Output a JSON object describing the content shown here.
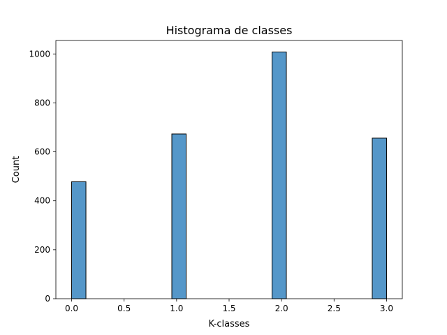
{
  "chart_data": {
    "type": "bar",
    "subtype": "histogram",
    "title": "Histograma de classes",
    "xlabel": "K-classes",
    "ylabel": "Count",
    "xlim": [
      -0.15,
      3.15
    ],
    "ylim": [
      0,
      1055
    ],
    "xticks": [
      0.0,
      0.5,
      1.0,
      1.5,
      2.0,
      2.5,
      3.0
    ],
    "xtick_labels": [
      "0.0",
      "0.5",
      "1.0",
      "1.5",
      "2.0",
      "2.5",
      "3.0"
    ],
    "yticks": [
      0,
      200,
      400,
      600,
      800,
      1000
    ],
    "ytick_labels": [
      "0",
      "200",
      "400",
      "600",
      "800",
      "1000"
    ],
    "bin_width": 0.13636,
    "bins": [
      {
        "x_start": 0.0,
        "count": 478
      },
      {
        "x_start": 0.95455,
        "count": 673
      },
      {
        "x_start": 1.90909,
        "count": 1008
      },
      {
        "x_start": 2.86364,
        "count": 656
      }
    ],
    "grid": false,
    "legend": "none",
    "colors": {
      "bar_fill": "#5597c9",
      "bar_edge": "#000000",
      "axis": "#000000",
      "background": "#ffffff"
    }
  }
}
